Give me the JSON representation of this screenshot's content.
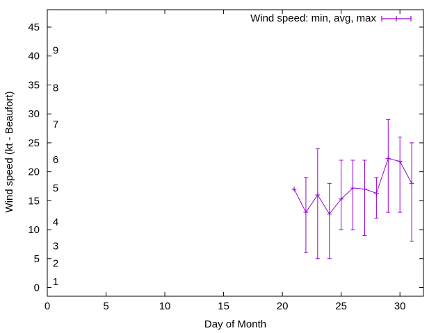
{
  "chart_data": {
    "type": "line",
    "title": "",
    "xlabel": "Day of Month",
    "ylabel": "Wind speed (kt - Beaufort)",
    "xlim": [
      0,
      32
    ],
    "ylim": [
      -1.5,
      48
    ],
    "xticks": [
      0,
      5,
      10,
      15,
      20,
      25,
      30
    ],
    "yticks": [
      0,
      5,
      10,
      15,
      20,
      25,
      30,
      35,
      40,
      45
    ],
    "grid": false,
    "legend_position": "top-right",
    "beaufort_labels": [
      {
        "label": "1",
        "value": 1
      },
      {
        "label": "2",
        "value": 4.2
      },
      {
        "label": "3",
        "value": 7.2
      },
      {
        "label": "4",
        "value": 11.3
      },
      {
        "label": "5",
        "value": 17.2
      },
      {
        "label": "6",
        "value": 22.1
      },
      {
        "label": "7",
        "value": 28.2
      },
      {
        "label": "8",
        "value": 34.5
      },
      {
        "label": "9",
        "value": 41.0
      }
    ],
    "series": [
      {
        "name": "Wind speed: min, avg, max",
        "color": "#9400d3",
        "points": [
          {
            "x": 21,
            "min": 17,
            "avg": 17,
            "max": 17
          },
          {
            "x": 22,
            "min": 6,
            "avg": 13,
            "max": 19
          },
          {
            "x": 23,
            "min": 5,
            "avg": 16,
            "max": 24
          },
          {
            "x": 24,
            "min": 5,
            "avg": 12.7,
            "max": 18
          },
          {
            "x": 25,
            "min": 10,
            "avg": 15.3,
            "max": 22
          },
          {
            "x": 26,
            "min": 10,
            "avg": 17.2,
            "max": 22
          },
          {
            "x": 27,
            "min": 9,
            "avg": 17,
            "max": 22
          },
          {
            "x": 28,
            "min": 12,
            "avg": 16.3,
            "max": 19
          },
          {
            "x": 29,
            "min": 13,
            "avg": 22.3,
            "max": 29
          },
          {
            "x": 30,
            "min": 13,
            "avg": 21.8,
            "max": 26
          },
          {
            "x": 31,
            "min": 8,
            "avg": 18,
            "max": 25
          }
        ]
      }
    ]
  }
}
